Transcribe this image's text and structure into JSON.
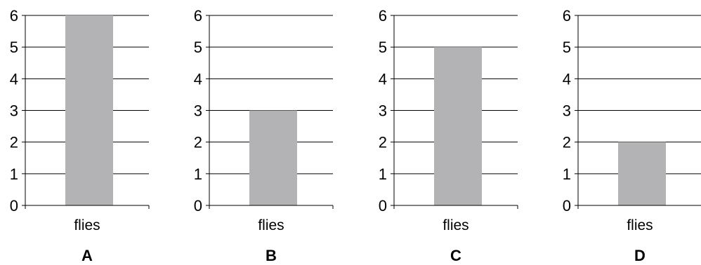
{
  "chart_data": [
    {
      "type": "bar",
      "panel_label": "A",
      "categories": [
        "flies"
      ],
      "values": [
        6
      ],
      "ylim": [
        0,
        6
      ],
      "yticks": [
        "0",
        "1",
        "2",
        "3",
        "4",
        "5",
        "6"
      ],
      "grid": true,
      "bar_color": "#b3b3b6"
    },
    {
      "type": "bar",
      "panel_label": "B",
      "categories": [
        "flies"
      ],
      "values": [
        3
      ],
      "ylim": [
        0,
        6
      ],
      "yticks": [
        "0",
        "1",
        "2",
        "3",
        "4",
        "5",
        "6"
      ],
      "grid": true,
      "bar_color": "#b3b3b6"
    },
    {
      "type": "bar",
      "panel_label": "C",
      "categories": [
        "flies"
      ],
      "values": [
        5
      ],
      "ylim": [
        0,
        6
      ],
      "yticks": [
        "0",
        "1",
        "2",
        "3",
        "4",
        "5",
        "6"
      ],
      "grid": true,
      "bar_color": "#b3b3b6"
    },
    {
      "type": "bar",
      "panel_label": "D",
      "categories": [
        "flies"
      ],
      "values": [
        2
      ],
      "ylim": [
        0,
        6
      ],
      "yticks": [
        "0",
        "1",
        "2",
        "3",
        "4",
        "5",
        "6"
      ],
      "grid": true,
      "bar_color": "#b3b3b6"
    }
  ]
}
